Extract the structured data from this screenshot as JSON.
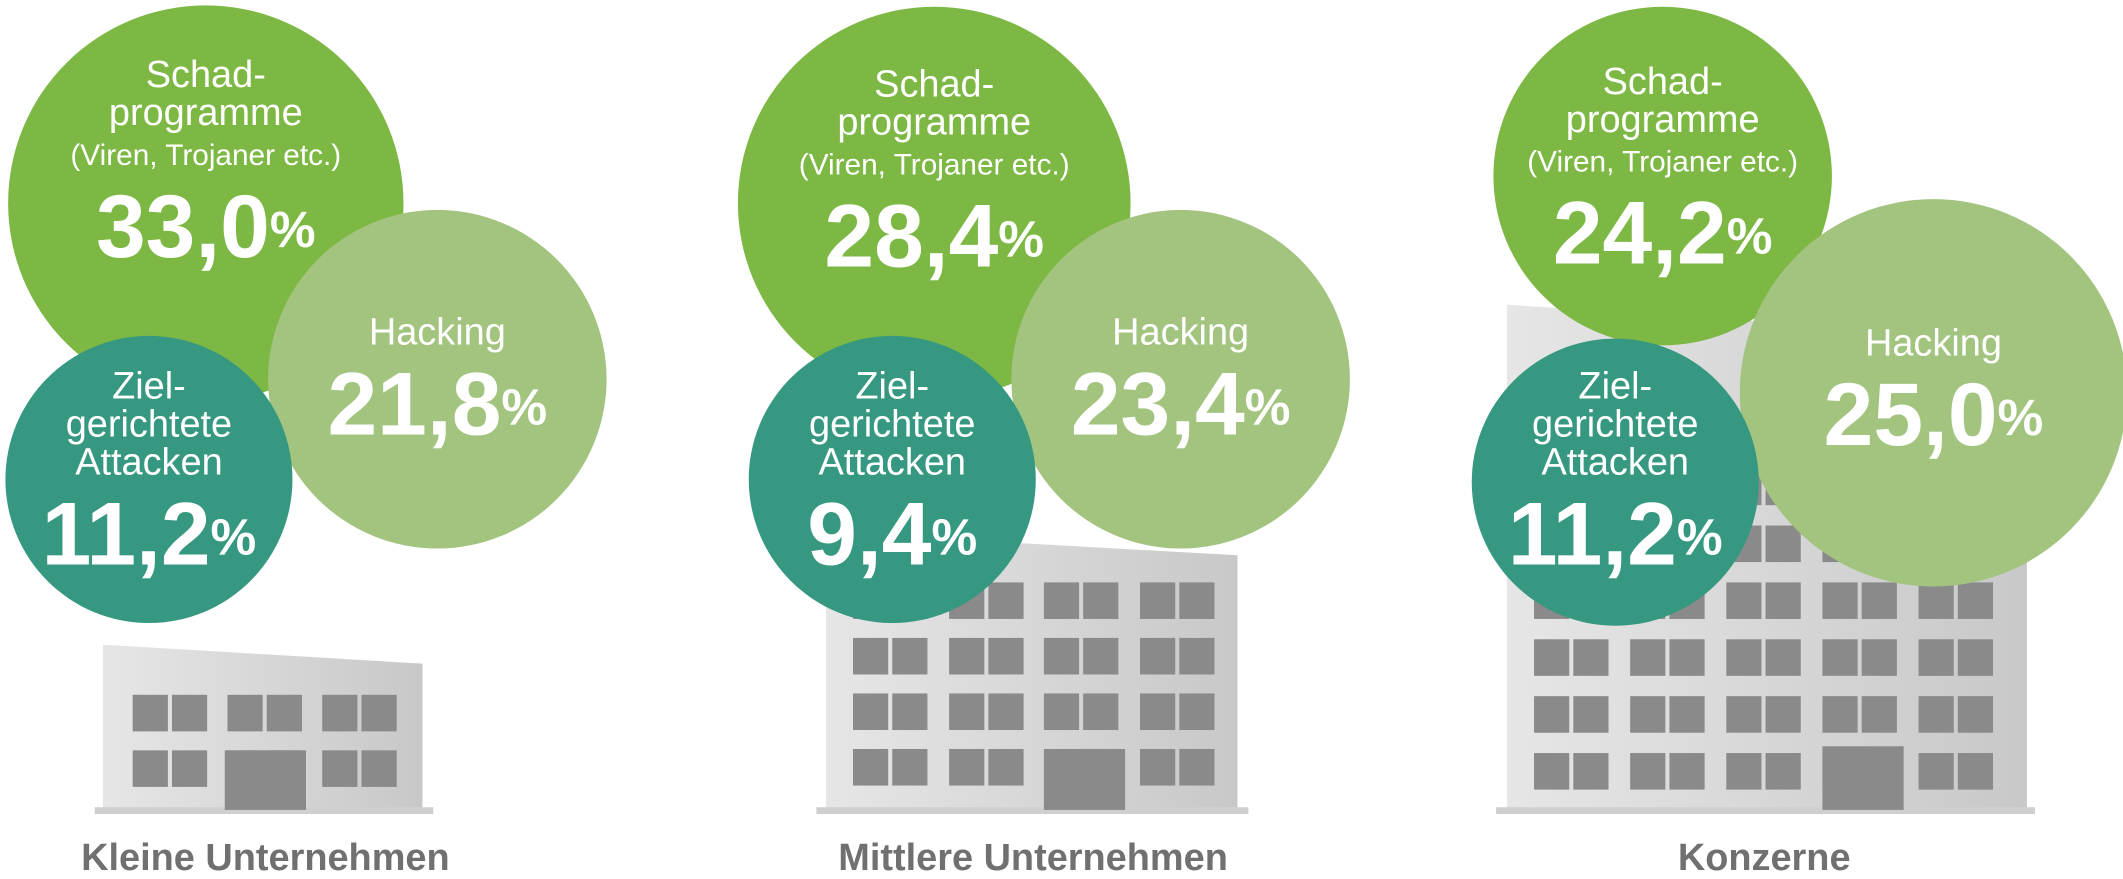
{
  "chart_data": {
    "type": "bubble",
    "categories": [
      "Kleine Unternehmen",
      "Mittlere Unternehmen",
      "Konzerne"
    ],
    "unit": "%",
    "series": [
      {
        "label_lines": [
          "Schad-",
          "programme",
          "(Viren, Trojaner etc.)"
        ],
        "color": "#7cb843",
        "values": [
          33.0,
          28.4,
          24.2
        ],
        "value_labels": [
          "33,0",
          "28,4",
          "24,2"
        ]
      },
      {
        "label_lines": [
          "Hacking"
        ],
        "color": "#a2c47f",
        "values": [
          21.8,
          23.4,
          25.0
        ],
        "value_labels": [
          "21,8",
          "23,4",
          "25,0"
        ]
      },
      {
        "label_lines": [
          "Ziel-",
          "gerichtete",
          "Attacken"
        ],
        "color": "#379882",
        "values": [
          11.2,
          9.4,
          11.2
        ],
        "value_labels": [
          "11,2",
          "9,4",
          "11,2"
        ]
      }
    ]
  }
}
